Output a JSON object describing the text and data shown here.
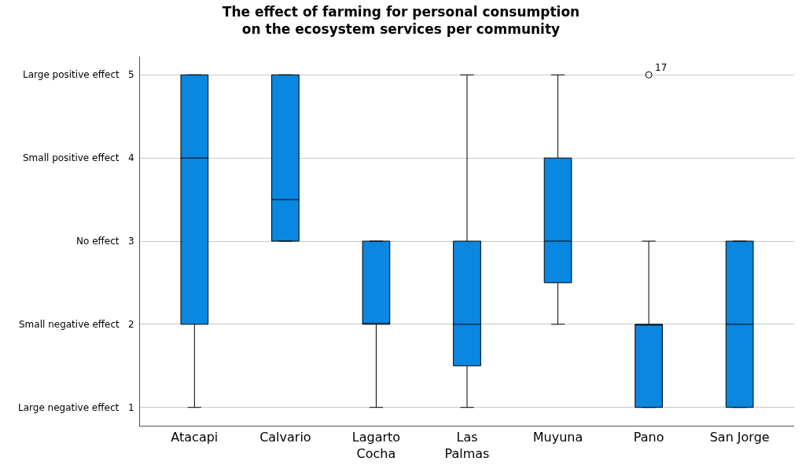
{
  "chart_data": {
    "type": "box",
    "title": "The effect of farming for personal consumption\non the ecosystem services per community",
    "categories": [
      "Atacapi",
      "Calvario",
      "Lagarto\nCocha",
      "Las\nPalmas",
      "Muyuna",
      "Pano",
      "San Jorge"
    ],
    "boxes": [
      {
        "low": 1,
        "q1": 2,
        "median": 4,
        "q3": 5,
        "high": 5
      },
      {
        "low": 3,
        "q1": 3,
        "median": 3.5,
        "q3": 5,
        "high": 5
      },
      {
        "low": 1,
        "q1": 2,
        "median": 2,
        "q3": 3,
        "high": 3
      },
      {
        "low": 1,
        "q1": 1.5,
        "median": 2,
        "q3": 3,
        "high": 5
      },
      {
        "low": 2,
        "q1": 2.5,
        "median": 3,
        "q3": 4,
        "high": 5
      },
      {
        "low": 1,
        "q1": 1,
        "median": 2,
        "q3": 2,
        "high": 3,
        "outliers": [
          5
        ]
      },
      {
        "low": 1,
        "q1": 1,
        "median": 2,
        "q3": 3,
        "high": 3
      }
    ],
    "color": "#0a87e0",
    "ylim": [
      0.78,
      5.22
    ],
    "yticks": [
      1,
      2,
      3,
      4,
      5
    ],
    "annotations": [
      "17",
      "Large negative effect",
      "Small negative effect",
      "No effect",
      "Small positive effect",
      "Large positive effect"
    ],
    "grid": "y",
    "marker": "circle"
  }
}
